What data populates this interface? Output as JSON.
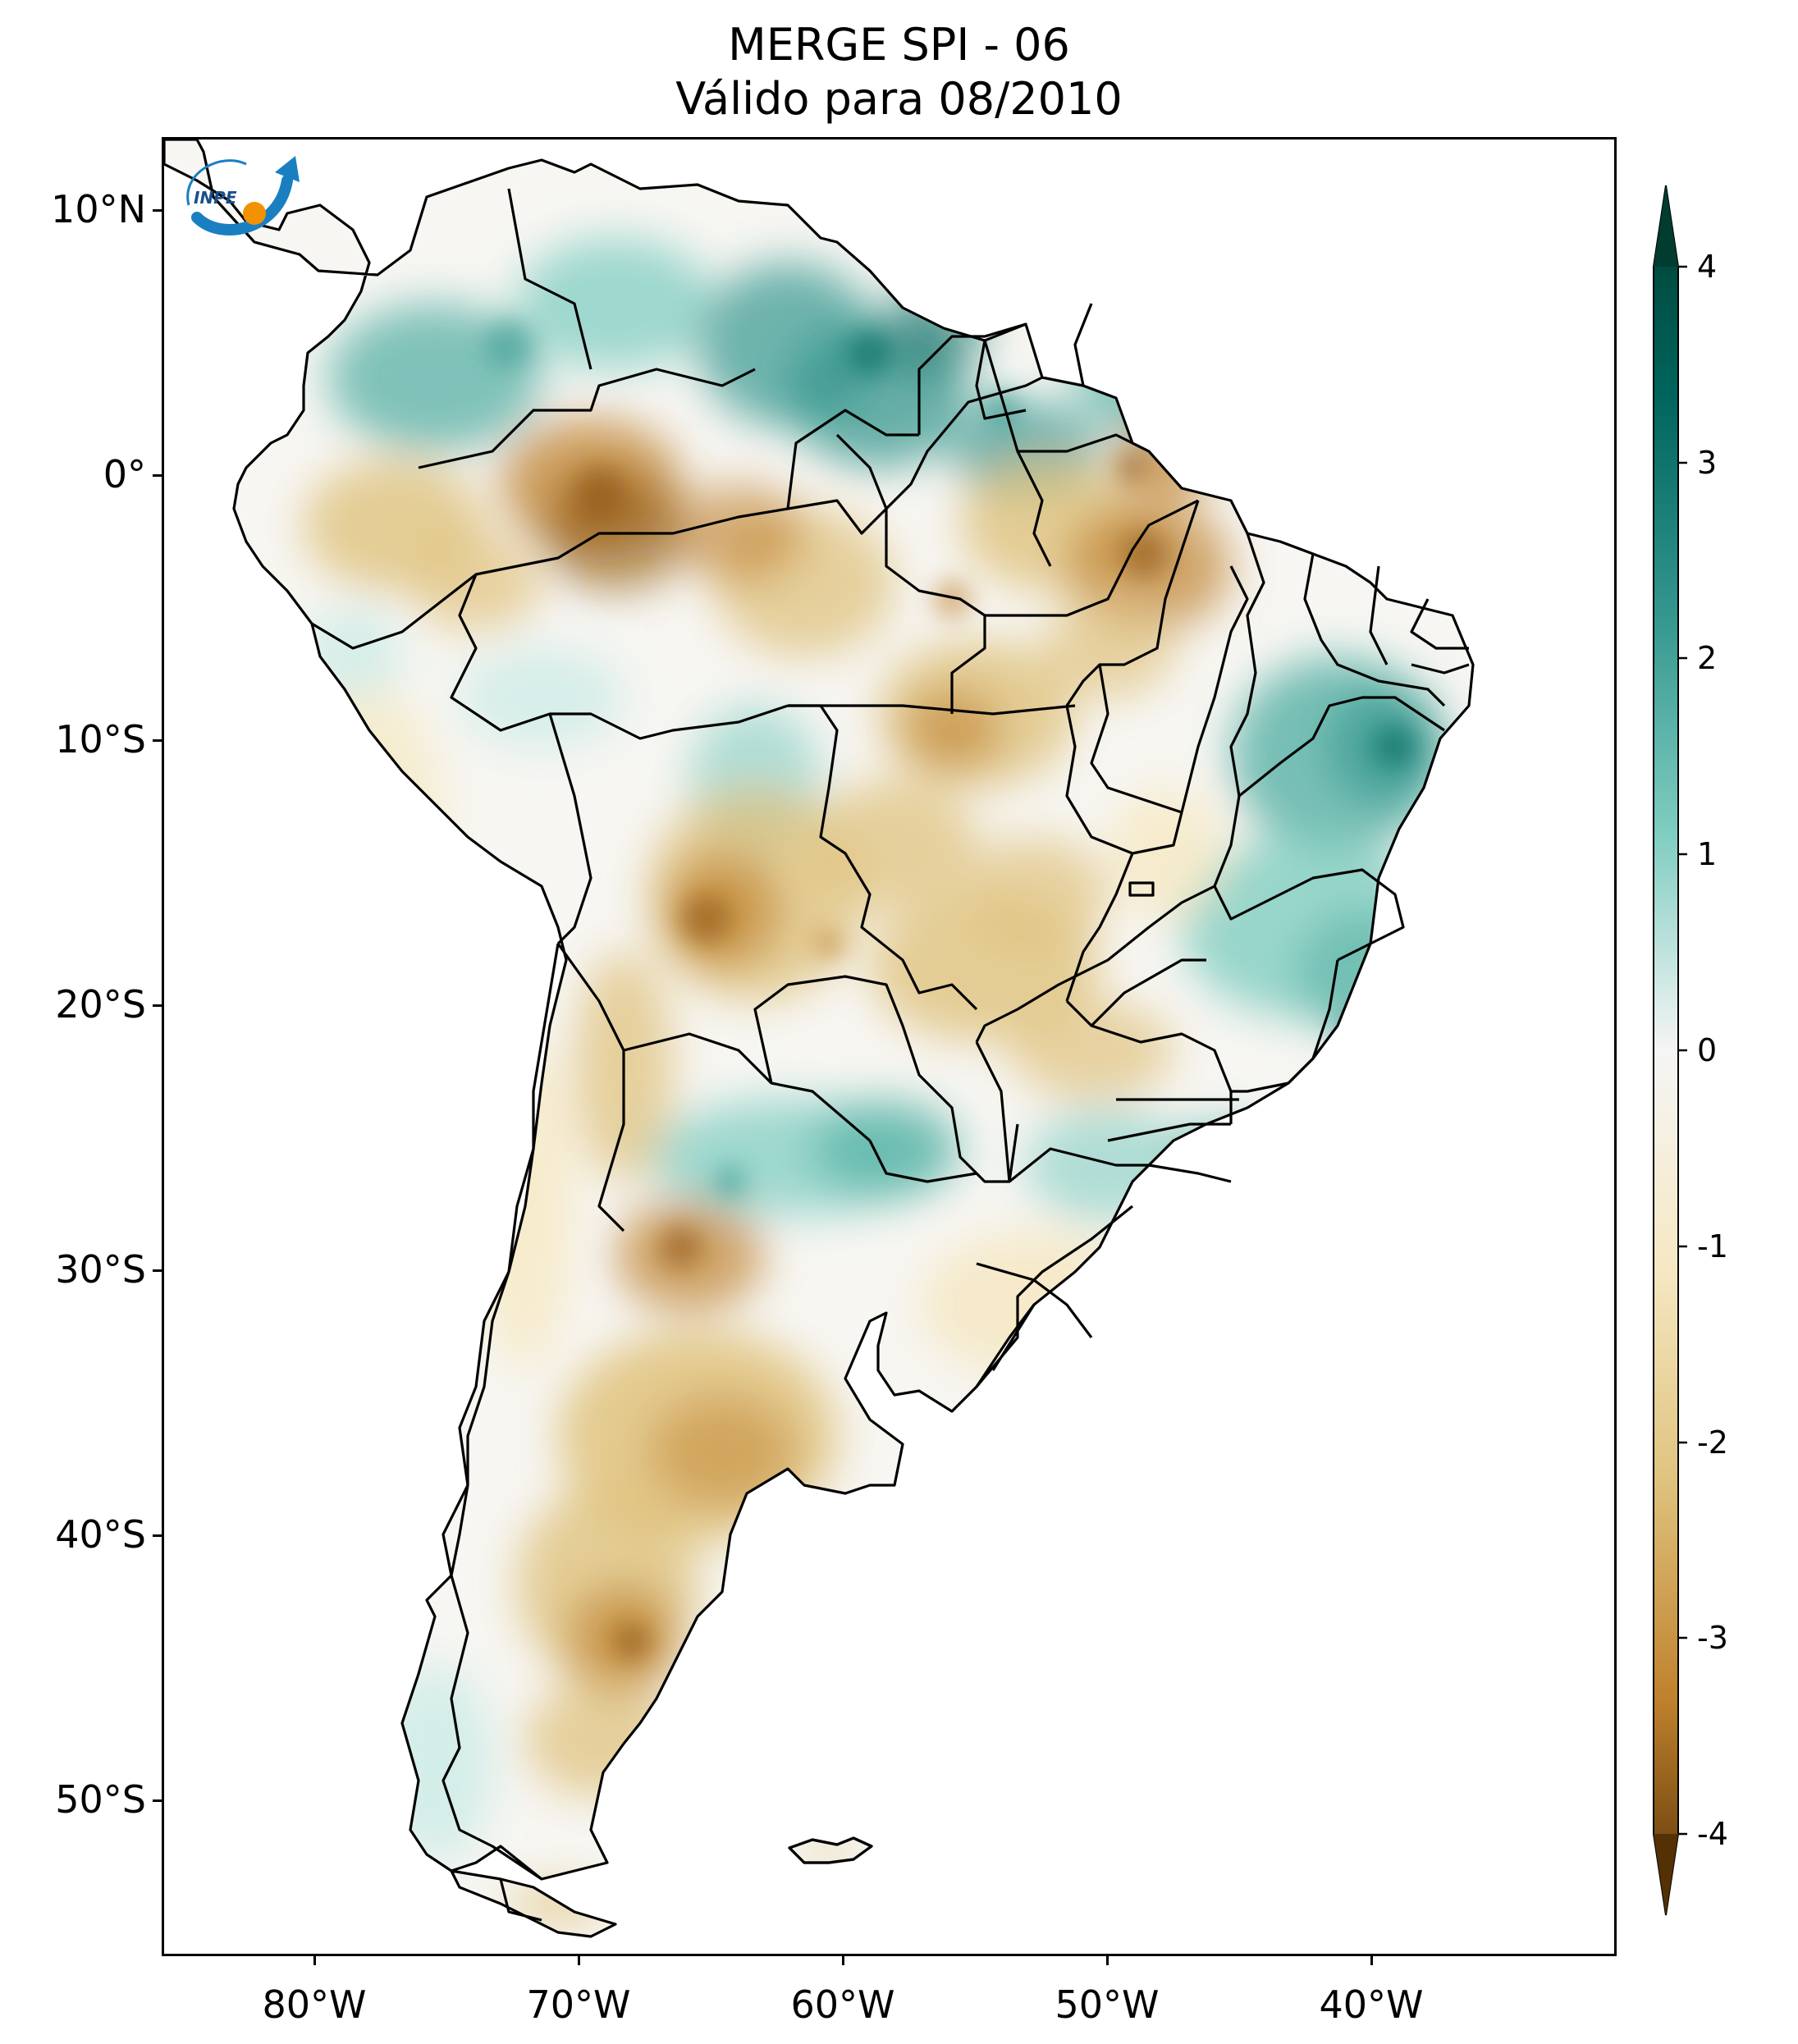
{
  "title": {
    "line1": "MERGE   SPI - 06",
    "line2": "Válido para 08/2010"
  },
  "latitude_labels": [
    "10°N",
    "0°",
    "10°S",
    "20°S",
    "30°S",
    "40°S",
    "50°S"
  ],
  "longitude_labels": [
    "80°W",
    "70°W",
    "60°W",
    "50°W",
    "40°W"
  ],
  "colorbar": {
    "ticks": [
      "4",
      "3",
      "2",
      "1",
      "0",
      "-1",
      "-2",
      "-3",
      "-4"
    ],
    "min": -4,
    "max": 4,
    "extend": "both",
    "colormap": "BrBG",
    "colors": {
      "dry_extreme": "#543005",
      "dry_strong": "#8c510a",
      "dry_moderate": "#bf812d",
      "dry_mild": "#dfc27d",
      "dry_slight": "#f6e8c3",
      "neutral": "#f5f5f5",
      "wet_slight": "#c7eae5",
      "wet_mild": "#80cdc1",
      "wet_moderate": "#35978f",
      "wet_strong": "#01665e",
      "wet_extreme": "#003c30"
    }
  },
  "logo": {
    "text": "INPE",
    "colors": {
      "arc": "#1a7fc1",
      "dot": "#f39200"
    }
  }
}
